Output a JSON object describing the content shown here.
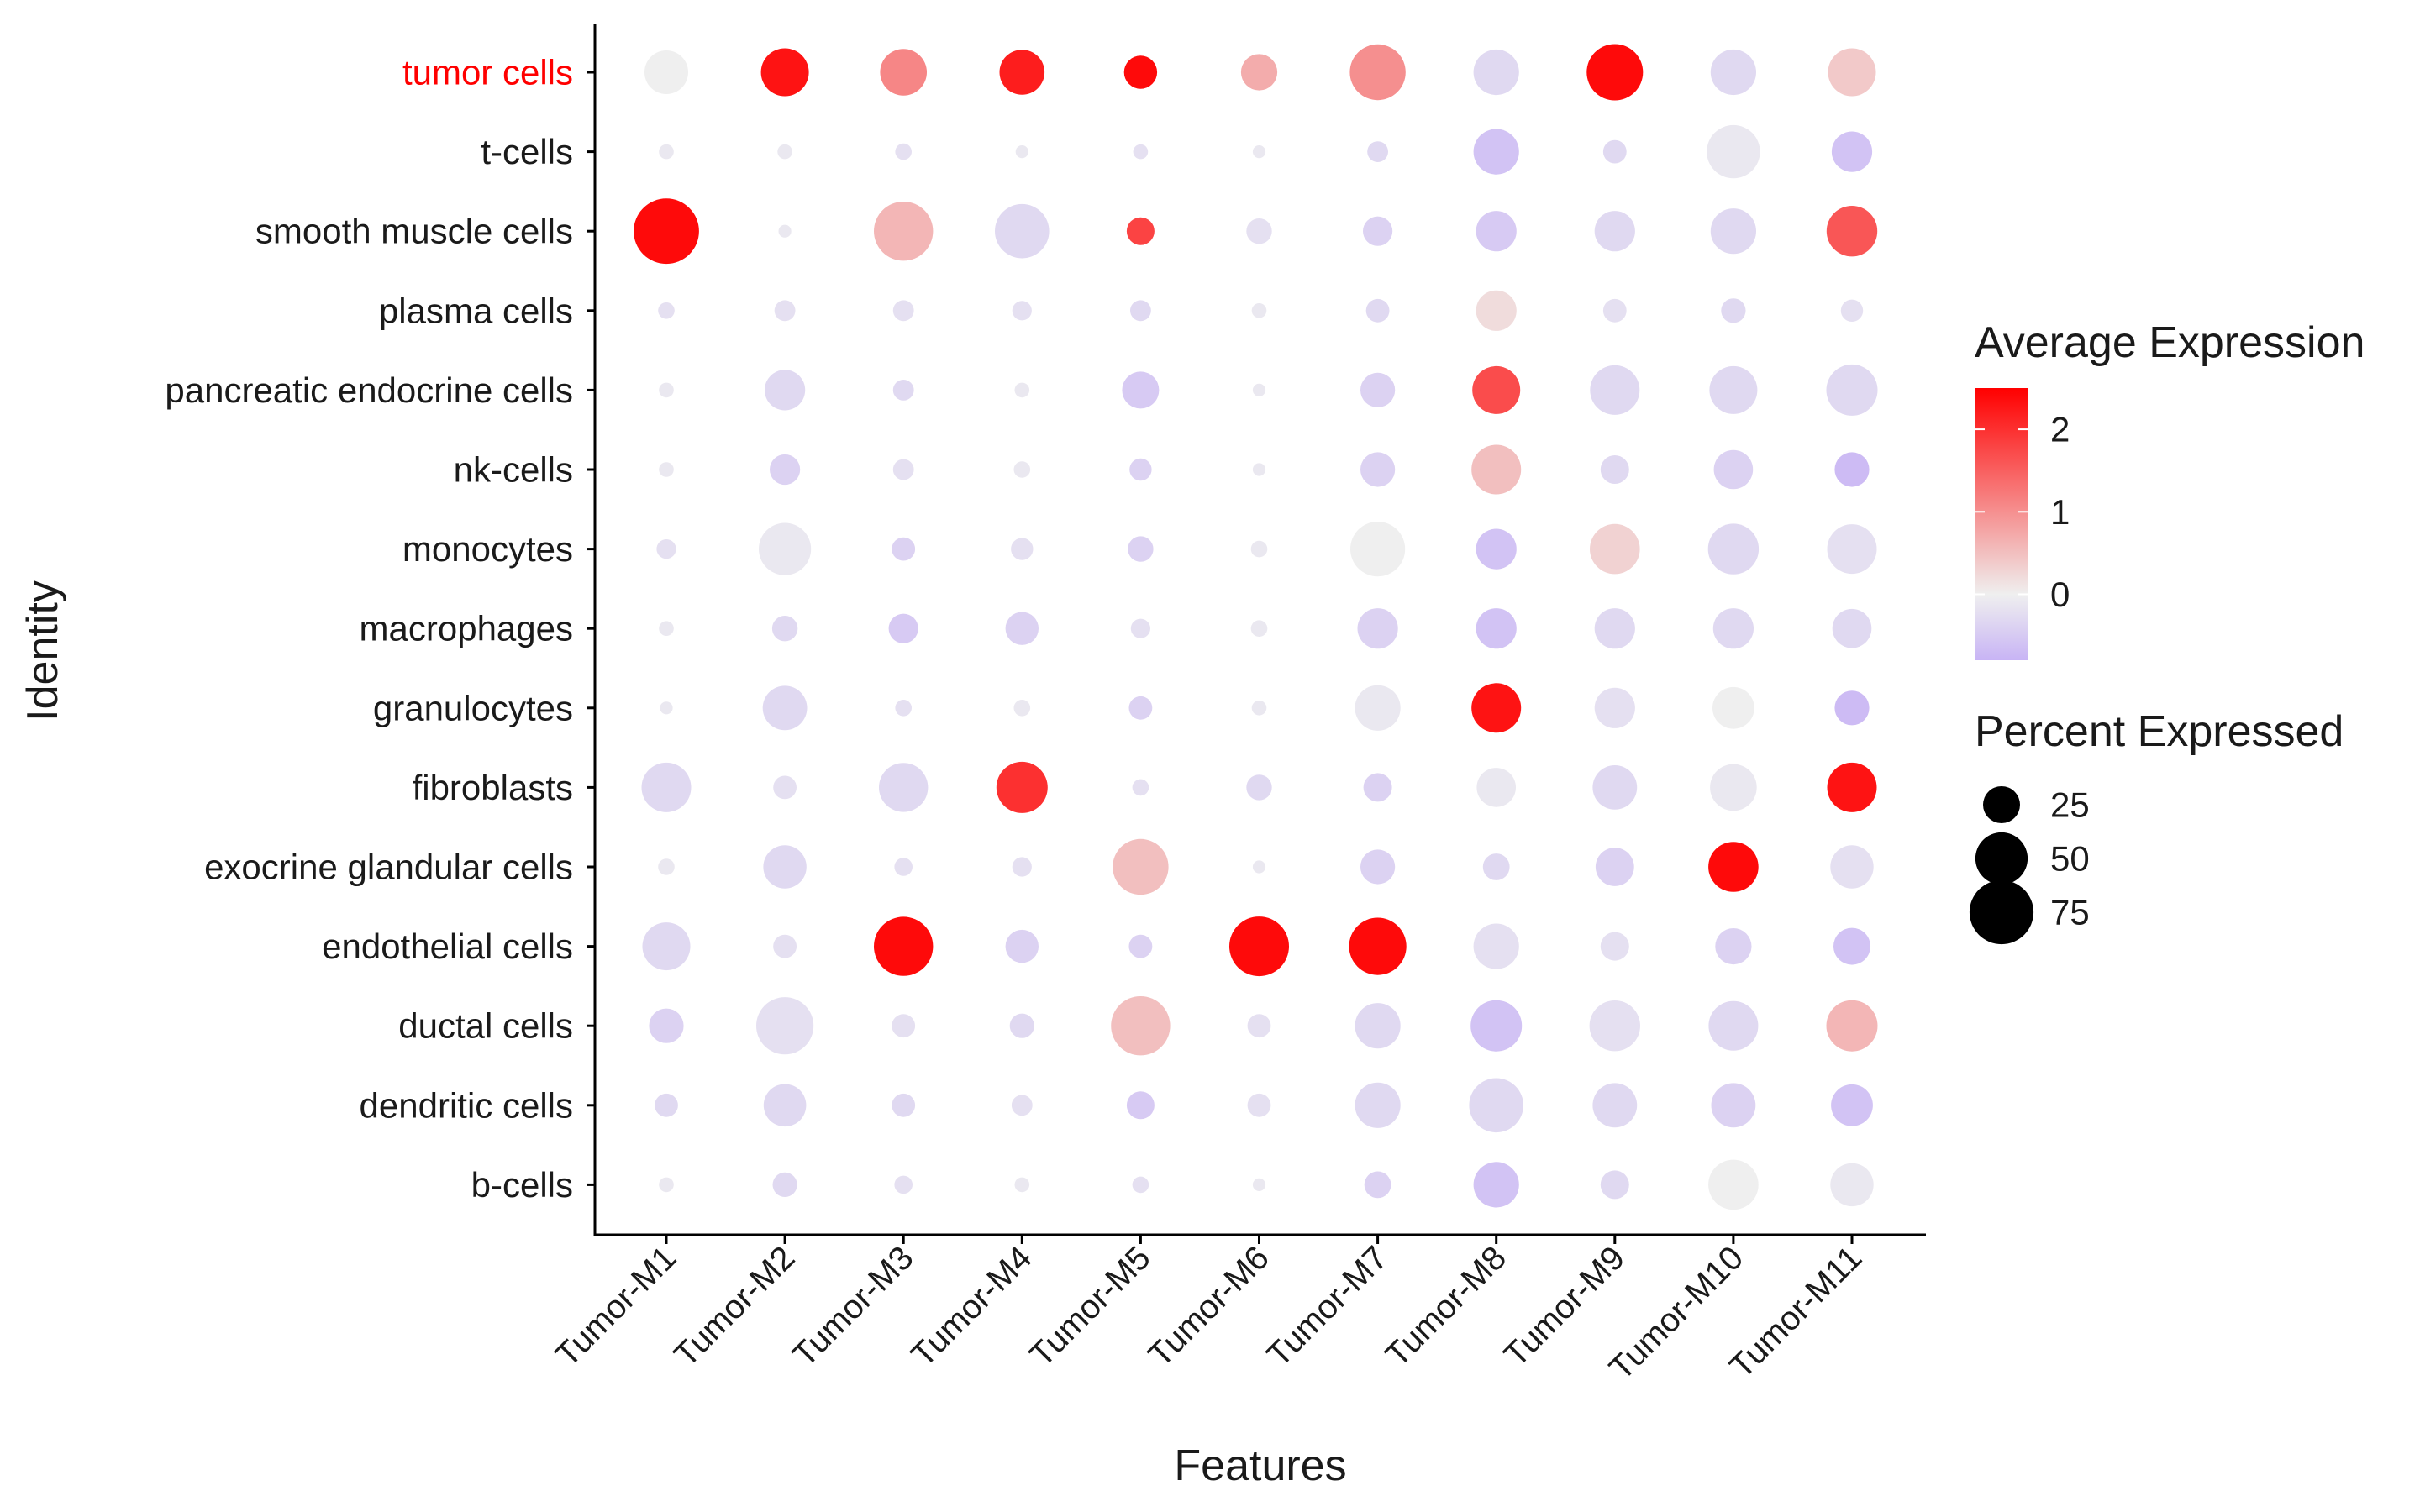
{
  "chart_data": {
    "type": "dot",
    "xlabel": "Features",
    "ylabel": "Identity",
    "features": [
      "Tumor-M1",
      "Tumor-M2",
      "Tumor-M3",
      "Tumor-M4",
      "Tumor-M5",
      "Tumor-M6",
      "Tumor-M7",
      "Tumor-M8",
      "Tumor-M9",
      "Tumor-M10",
      "Tumor-M11"
    ],
    "identities": [
      "tumor cells",
      "t-cells",
      "smooth muscle cells",
      "plasma cells",
      "pancreatic endocrine cells",
      "nk-cells",
      "monocytes",
      "macrophages",
      "granulocytes",
      "fibroblasts",
      "exocrine glandular cells",
      "endothelial cells",
      "ductal cells",
      "dendritic cells",
      "b-cells"
    ],
    "highlight_identity": "tumor cells",
    "highlight_color": "#ff0000",
    "color_legend": {
      "title": "Average Expression",
      "ticks": [
        2,
        1,
        0
      ],
      "range": [
        -0.8,
        2.5
      ],
      "low_color": "#c8b4f5",
      "mid_color": "#efefef",
      "high_color": "#ff0000"
    },
    "size_legend": {
      "title": "Percent Expressed",
      "values": [
        25,
        50,
        75
      ]
    },
    "avg_expression": [
      [
        0.0,
        2.3,
        1.1,
        2.2,
        2.4,
        0.7,
        1.0,
        -0.3,
        2.4,
        -0.3,
        0.4
      ],
      [
        -0.1,
        -0.1,
        -0.2,
        -0.1,
        -0.2,
        -0.1,
        -0.3,
        -0.6,
        -0.3,
        -0.1,
        -0.6
      ],
      [
        2.4,
        -0.1,
        0.6,
        -0.3,
        1.8,
        -0.2,
        -0.4,
        -0.5,
        -0.3,
        -0.3,
        1.6
      ],
      [
        -0.2,
        -0.2,
        -0.2,
        -0.2,
        -0.3,
        -0.1,
        -0.3,
        0.2,
        -0.2,
        -0.3,
        -0.2
      ],
      [
        -0.1,
        -0.3,
        -0.3,
        -0.1,
        -0.5,
        -0.1,
        -0.4,
        1.7,
        -0.3,
        -0.3,
        -0.3
      ],
      [
        -0.1,
        -0.4,
        -0.2,
        -0.1,
        -0.4,
        -0.1,
        -0.4,
        0.5,
        -0.3,
        -0.4,
        -0.7
      ],
      [
        -0.2,
        -0.1,
        -0.4,
        -0.2,
        -0.4,
        -0.1,
        0.0,
        -0.6,
        0.3,
        -0.3,
        -0.2
      ],
      [
        -0.1,
        -0.3,
        -0.5,
        -0.4,
        -0.2,
        -0.1,
        -0.4,
        -0.6,
        -0.3,
        -0.3,
        -0.3
      ],
      [
        -0.1,
        -0.3,
        -0.2,
        -0.1,
        -0.4,
        -0.1,
        -0.1,
        2.3,
        -0.2,
        0.0,
        -0.7
      ],
      [
        -0.3,
        -0.2,
        -0.3,
        2.0,
        -0.2,
        -0.3,
        -0.4,
        -0.1,
        -0.3,
        -0.1,
        2.3
      ],
      [
        -0.1,
        -0.3,
        -0.2,
        -0.2,
        0.5,
        -0.1,
        -0.4,
        -0.3,
        -0.4,
        2.4,
        -0.2
      ],
      [
        -0.3,
        -0.2,
        2.4,
        -0.4,
        -0.4,
        2.4,
        2.4,
        -0.2,
        -0.2,
        -0.4,
        -0.6
      ],
      [
        -0.4,
        -0.2,
        -0.2,
        -0.3,
        0.5,
        -0.2,
        -0.3,
        -0.6,
        -0.2,
        -0.3,
        0.6
      ],
      [
        -0.3,
        -0.3,
        -0.3,
        -0.2,
        -0.5,
        -0.2,
        -0.3,
        -0.3,
        -0.3,
        -0.4,
        -0.6
      ],
      [
        -0.1,
        -0.3,
        -0.2,
        -0.1,
        -0.2,
        -0.1,
        -0.4,
        -0.6,
        -0.3,
        0.0,
        -0.1
      ]
    ],
    "percent_expressed": [
      [
        35,
        42,
        40,
        37,
        20,
        24,
        57,
        38,
        58,
        38,
        42
      ],
      [
        4,
        4,
        5,
        3,
        4,
        3,
        8,
        38,
        10,
        52,
        30
      ],
      [
        78,
        3,
        64,
        54,
        14,
        12,
        16,
        30,
        30,
        38,
        47
      ],
      [
        5,
        8,
        8,
        7,
        8,
        4,
        10,
        30,
        10,
        11,
        9
      ],
      [
        4,
        30,
        8,
        4,
        25,
        3,
        22,
        42,
        45,
        42,
        48
      ],
      [
        4,
        17,
        8,
        5,
        9,
        3,
        22,
        45,
        15,
        28,
        22
      ],
      [
        7,
        50,
        10,
        9,
        12,
        5,
        55,
        30,
        46,
        47,
        45
      ],
      [
        4,
        12,
        16,
        20,
        7,
        5,
        30,
        30,
        30,
        30,
        28
      ],
      [
        3,
        36,
        5,
        5,
        10,
        4,
        38,
        45,
        30,
        32,
        22
      ],
      [
        45,
        10,
        44,
        48,
        5,
        12,
        15,
        28,
        36,
        40,
        45
      ],
      [
        5,
        34,
        6,
        7,
        57,
        3,
        22,
        13,
        27,
        46,
        34
      ],
      [
        42,
        10,
        64,
        20,
        10,
        65,
        60,
        38,
        15,
        24,
        25
      ],
      [
        22,
        60,
        10,
        11,
        64,
        10,
        38,
        48,
        47,
        45,
        48
      ],
      [
        10,
        33,
        10,
        8,
        14,
        10,
        38,
        54,
        36,
        36,
        32
      ],
      [
        4,
        11,
        6,
        4,
        5,
        3,
        13,
        38,
        15,
        46,
        34
      ]
    ]
  }
}
